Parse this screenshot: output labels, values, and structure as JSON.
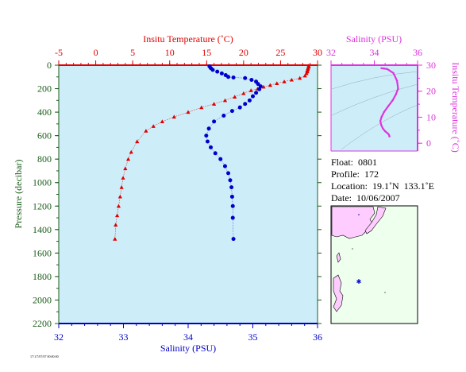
{
  "colors": {
    "temperature": "#e00000",
    "salinity": "#0000cc",
    "ts": "#dd33dd",
    "plot_bg": "#cdeef9",
    "map_land": "#ffccff",
    "map_sea": "#eeffee",
    "pressure_axis": "#1a5c1a"
  },
  "footer_text": "17/1/7/07/07 00:00:00",
  "info": {
    "float": "Float:  0801",
    "profile": "Profile:  172",
    "location": "Location:  19.1˚N  133.1˚E",
    "date": "Date:  10/06/2007"
  },
  "chart_data": [
    {
      "type": "line",
      "name": "profile",
      "title": "",
      "y_axis": {
        "label": "Pressure (decibar)",
        "range": [
          2200,
          0
        ],
        "ticks": [
          0,
          200,
          400,
          600,
          800,
          1000,
          1200,
          1400,
          1600,
          1800,
          2000,
          2200
        ]
      },
      "top_axis": {
        "label": "Insitu Temperature (˚C)",
        "range": [
          -5,
          30
        ],
        "ticks": [
          -5,
          0,
          5,
          10,
          15,
          20,
          25,
          30
        ]
      },
      "bottom_axis": {
        "label": "Salinity (PSU)",
        "range": [
          32,
          36
        ],
        "ticks": [
          32,
          33,
          34,
          35,
          36
        ]
      },
      "series": [
        {
          "quantity": "temperature",
          "marker": "triangle",
          "x": [
            28.8,
            28.8,
            28.7,
            28.7,
            28.6,
            28.6,
            28.5,
            28.3,
            27.6,
            26.5,
            25.5,
            24.5,
            23.6,
            22.7,
            21.9,
            21.0,
            20.0,
            18.8,
            17.5,
            16.0,
            14.3,
            12.5,
            10.6,
            9.0,
            7.8,
            6.8,
            5.6,
            4.8,
            4.4,
            4.0,
            3.7,
            3.5,
            3.3,
            3.1,
            2.9,
            2.7,
            2.6
          ],
          "y": [
            5,
            15,
            25,
            35,
            45,
            55,
            70,
            90,
            110,
            125,
            140,
            155,
            170,
            185,
            200,
            215,
            240,
            270,
            300,
            330,
            360,
            400,
            440,
            480,
            520,
            560,
            650,
            740,
            800,
            880,
            960,
            1040,
            1120,
            1200,
            1280,
            1360,
            1480
          ]
        },
        {
          "quantity": "salinity",
          "marker": "circle",
          "x": [
            34.33,
            34.35,
            34.38,
            34.45,
            34.52,
            34.58,
            34.62,
            34.7,
            34.88,
            34.98,
            35.05,
            35.08,
            35.12,
            35.1,
            35.05,
            35.0,
            34.95,
            34.88,
            34.8,
            34.68,
            34.55,
            34.4,
            34.32,
            34.28,
            34.3,
            34.35,
            34.42,
            34.5,
            34.57,
            34.62,
            34.65,
            34.67,
            34.68,
            34.69,
            34.69,
            34.7
          ],
          "y": [
            10,
            25,
            40,
            55,
            70,
            85,
            100,
            105,
            110,
            125,
            140,
            160,
            180,
            205,
            235,
            265,
            300,
            330,
            360,
            390,
            430,
            480,
            540,
            600,
            650,
            700,
            750,
            800,
            860,
            920,
            980,
            1040,
            1120,
            1200,
            1300,
            1480
          ]
        }
      ]
    },
    {
      "type": "scatter",
      "name": "ts_diagram",
      "title": "",
      "x_axis": {
        "label": "Salinity (PSU)",
        "range": [
          32,
          36
        ],
        "ticks": [
          32,
          34,
          36
        ]
      },
      "y_axis": {
        "label": "Insitu Temperature (˚C)",
        "range": [
          -3,
          30
        ],
        "ticks": [
          0,
          10,
          20,
          30
        ]
      },
      "series": [
        {
          "quantity": "ts",
          "x": [
            34.33,
            34.45,
            34.6,
            34.88,
            35.05,
            35.1,
            35.0,
            34.85,
            34.65,
            34.45,
            34.33,
            34.28,
            34.32,
            34.4,
            34.5,
            34.62,
            34.68,
            34.7
          ],
          "y": [
            28.8,
            28.7,
            28.5,
            27.0,
            24.0,
            21.0,
            18.8,
            16.5,
            14.3,
            12.0,
            10.0,
            8.5,
            7.0,
            5.6,
            4.6,
            3.8,
            3.2,
            2.6
          ]
        }
      ]
    }
  ]
}
